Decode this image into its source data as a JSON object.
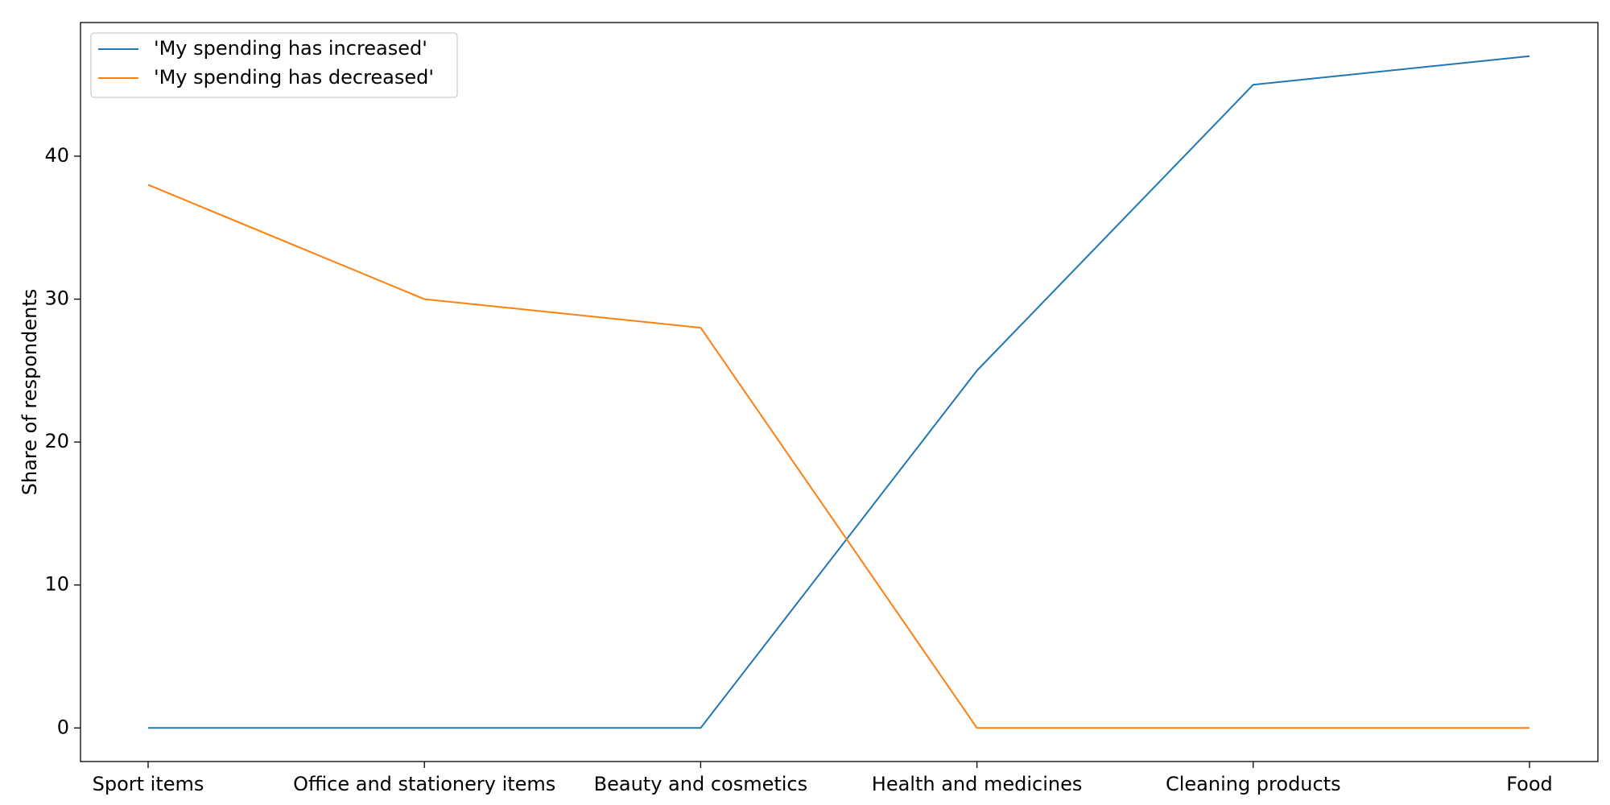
{
  "chart_data": {
    "type": "line",
    "categories": [
      "Sport items",
      "Office and stationery items",
      "Beauty and cosmetics",
      "Health and medicines",
      "Cleaning products",
      "Food"
    ],
    "series": [
      {
        "name": "'My spending has increased'",
        "color": "#1f77b4",
        "values": [
          0,
          0,
          0,
          25,
          45,
          47
        ]
      },
      {
        "name": "'My spending has decreased'",
        "color": "#ff7f0e",
        "values": [
          38,
          30,
          28,
          0,
          0,
          0
        ]
      }
    ],
    "ylabel": "Share of respondents",
    "xlabel": "",
    "ylim": [
      -2.35,
      49.35
    ],
    "yticks": [
      0,
      10,
      20,
      30,
      40
    ],
    "grid": false,
    "legend": "top-left"
  }
}
